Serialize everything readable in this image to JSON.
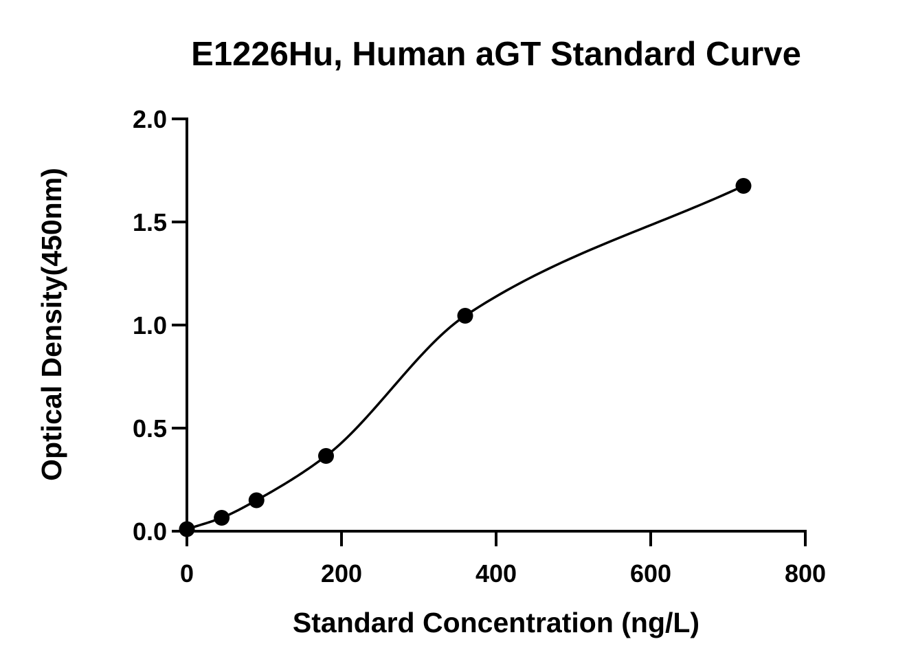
{
  "chart_data": {
    "type": "scatter",
    "title": "E1226Hu, Human aGT Standard Curve",
    "xlabel": "Standard Concentration (ng/L)",
    "ylabel": "Optical Density(450nm)",
    "xlim": [
      0,
      800
    ],
    "ylim": [
      0,
      2.0
    ],
    "x_ticks": [
      "0",
      "200",
      "400",
      "600",
      "800"
    ],
    "y_ticks": [
      "0.0",
      "0.5",
      "1.0",
      "1.5",
      "2.0"
    ],
    "grid": false,
    "legend": "none",
    "series": [
      {
        "x": [
          0,
          45,
          90,
          180,
          360,
          720
        ],
        "y": [
          0.01,
          0.065,
          0.15,
          0.365,
          1.045,
          1.675
        ],
        "marker": "filled-circle",
        "fit": "four-parameter logistic curve"
      }
    ],
    "colors": {
      "points": "#000000",
      "curve": "#000000",
      "axes": "#000000"
    }
  }
}
